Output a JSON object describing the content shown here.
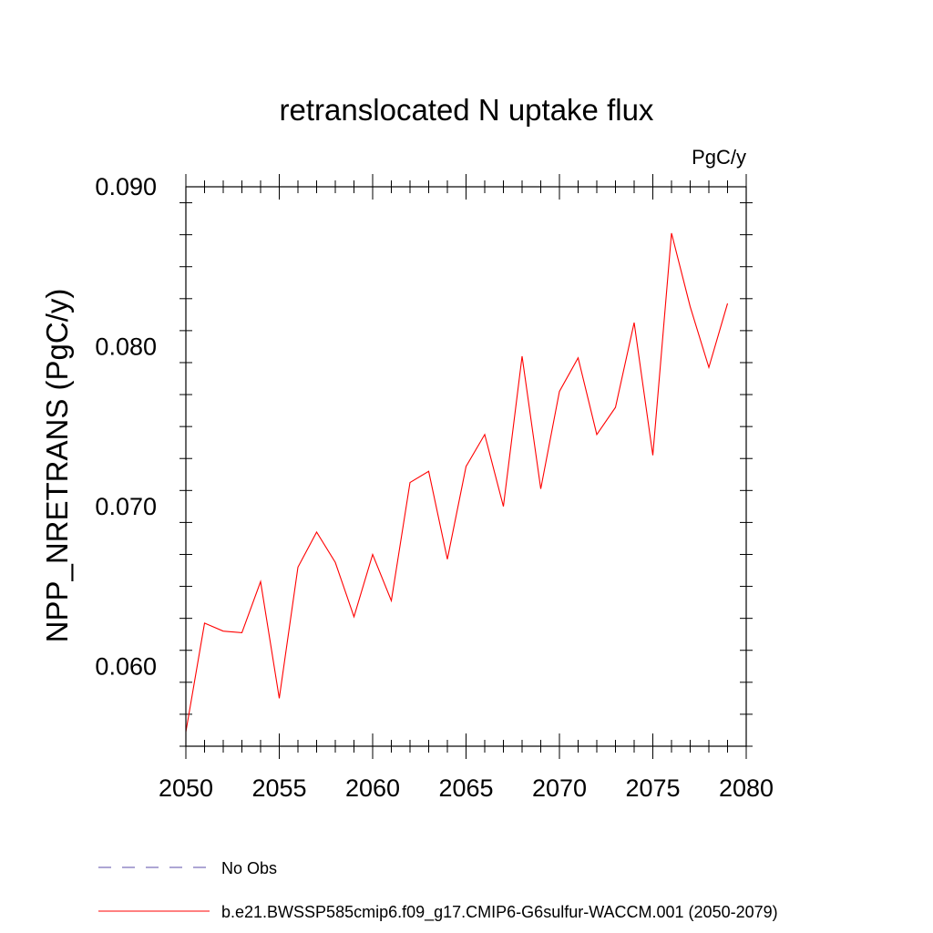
{
  "chart_data": {
    "type": "line",
    "title": "retranslocated N uptake flux",
    "units_label": "PgC/y",
    "ylabel": "NPP_NRETRANS  (PgC/y)",
    "xlabel": "",
    "xlim": [
      2050,
      2080
    ],
    "ylim": [
      0.055,
      0.09
    ],
    "x_ticks": [
      "2050",
      "2055",
      "2060",
      "2065",
      "2070",
      "2075",
      "2080"
    ],
    "y_ticks": [
      "0.060",
      "0.070",
      "0.080",
      "0.090"
    ],
    "grid": false,
    "series": [
      {
        "name": "b.e21.BWSSP585cmip6.f09_g17.CMIP6-G6sulfur-WACCM.001 (2050-2079)",
        "color": "#ff0000",
        "line_style": "solid",
        "x": [
          2050,
          2051,
          2052,
          2053,
          2054,
          2055,
          2056,
          2057,
          2058,
          2059,
          2060,
          2061,
          2062,
          2063,
          2064,
          2065,
          2066,
          2067,
          2068,
          2069,
          2070,
          2071,
          2072,
          2073,
          2074,
          2075,
          2076,
          2077,
          2078,
          2079
        ],
        "y": [
          0.0559,
          0.0627,
          0.0622,
          0.0621,
          0.0653,
          0.058,
          0.0662,
          0.0684,
          0.0665,
          0.0631,
          0.067,
          0.0641,
          0.0715,
          0.0722,
          0.0667,
          0.0725,
          0.0745,
          0.07,
          0.0794,
          0.0711,
          0.0772,
          0.0793,
          0.0745,
          0.0762,
          0.0815,
          0.0732,
          0.0871,
          0.0825,
          0.0787,
          0.0827
        ]
      }
    ],
    "legend": {
      "placement": "bottom-left",
      "entries": [
        {
          "label": "No Obs",
          "color": "#5b4ea8",
          "line_style": "dashed"
        },
        {
          "label": "b.e21.BWSSP585cmip6.f09_g17.CMIP6-G6sulfur-WACCM.001 (2050-2079)",
          "color": "#ff0000",
          "line_style": "solid"
        }
      ]
    }
  }
}
